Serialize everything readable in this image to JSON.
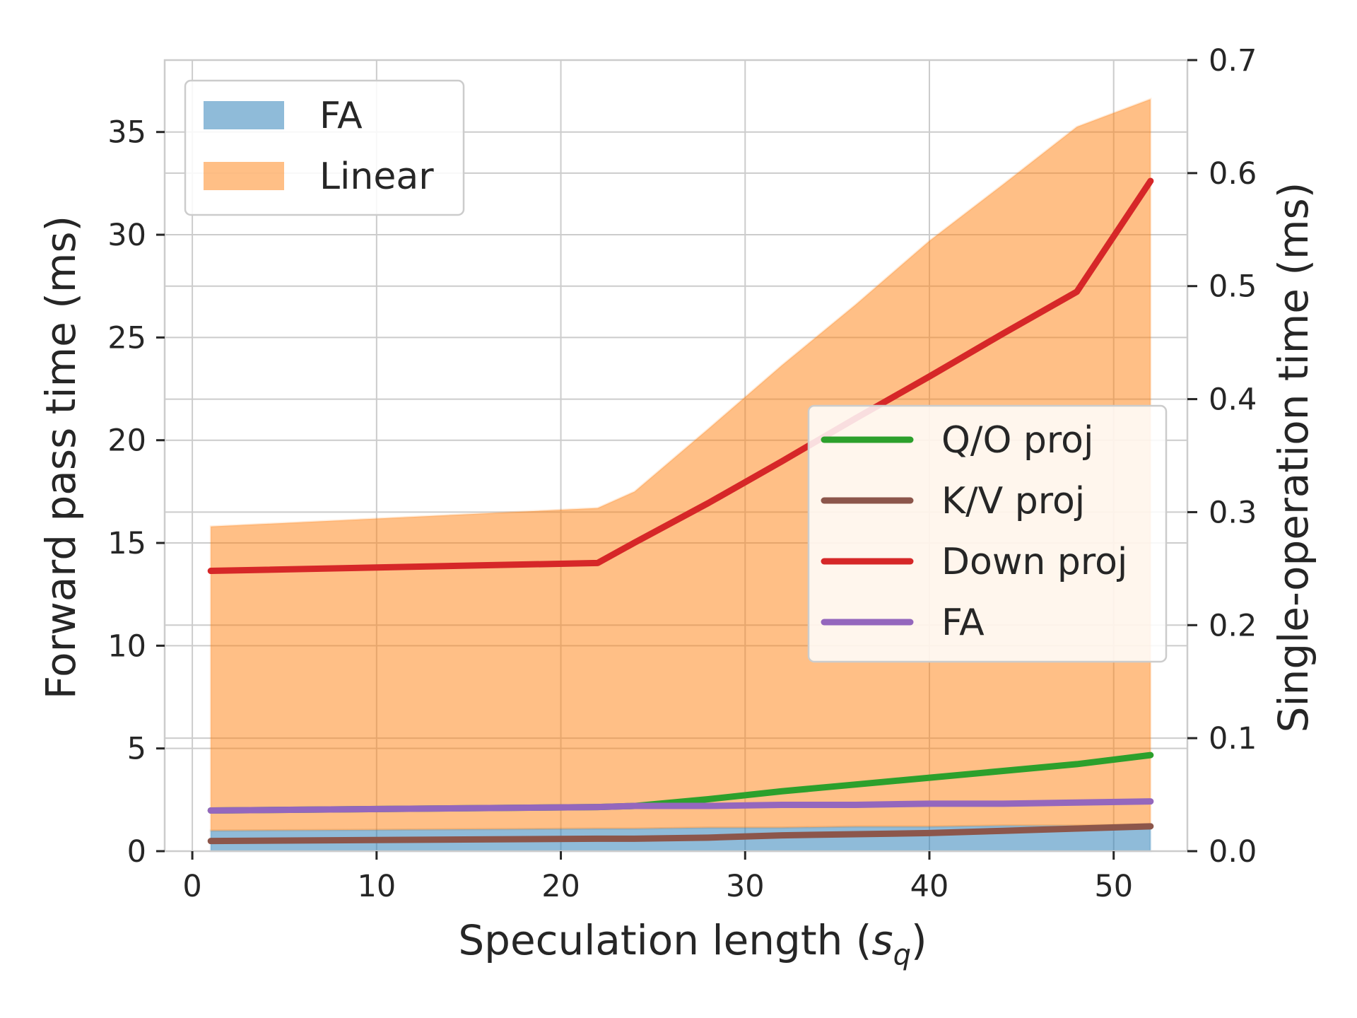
{
  "chart_data": {
    "type": "area",
    "title": "",
    "xlabel": "Speculation length (",
    "xlabel_var": "s",
    "xlabel_sub": "q",
    "xlabel_end": ")",
    "ylabel": "Forward pass time (ms)",
    "ylabel_right": "Single-operation time (ms)",
    "xlim": [
      -1.5,
      54
    ],
    "ylim": [
      0,
      38.5
    ],
    "ylim_right": [
      0,
      0.7
    ],
    "x_ticks": [
      0,
      10,
      20,
      30,
      40,
      50
    ],
    "y_ticks": [
      0,
      5,
      10,
      15,
      20,
      25,
      30,
      35
    ],
    "y_ticks_right": [
      0.0,
      0.1,
      0.2,
      0.3,
      0.4,
      0.5,
      0.6,
      0.7
    ],
    "grid": true,
    "stacked_area": {
      "axis": "left",
      "legend_placement": "upper-left",
      "x": [
        1,
        22,
        24,
        28,
        32,
        36,
        40,
        44,
        48,
        52
      ],
      "series": [
        {
          "name": "FA",
          "color": "#1f77b4",
          "values": [
            1.0,
            1.1,
            1.1,
            1.15,
            1.15,
            1.2,
            1.2,
            1.25,
            1.25,
            1.3
          ]
        },
        {
          "name": "Linear",
          "color": "#ff7f0e",
          "values": [
            14.8,
            15.6,
            16.4,
            19.4,
            22.5,
            25.4,
            28.5,
            31.2,
            34.0,
            35.3
          ]
        }
      ]
    },
    "lines": {
      "axis": "right",
      "legend_placement": "center-right",
      "x": [
        1,
        22,
        24,
        28,
        32,
        36,
        40,
        44,
        48,
        52
      ],
      "series": [
        {
          "name": "Q/O proj",
          "color": "#2ca02c",
          "values": [
            0.036,
            0.039,
            0.04,
            0.046,
            0.053,
            0.059,
            0.065,
            0.071,
            0.077,
            0.085
          ]
        },
        {
          "name": "K/V proj",
          "color": "#8c564b",
          "values": [
            0.009,
            0.011,
            0.011,
            0.012,
            0.014,
            0.015,
            0.016,
            0.018,
            0.02,
            0.022
          ]
        },
        {
          "name": "Down proj",
          "color": "#d62728",
          "values": [
            0.248,
            0.255,
            0.273,
            0.308,
            0.345,
            0.383,
            0.42,
            0.458,
            0.495,
            0.593
          ]
        },
        {
          "name": "FA",
          "color": "#9467bd",
          "values": [
            0.036,
            0.039,
            0.04,
            0.04,
            0.041,
            0.041,
            0.042,
            0.042,
            0.043,
            0.044
          ]
        }
      ]
    }
  }
}
